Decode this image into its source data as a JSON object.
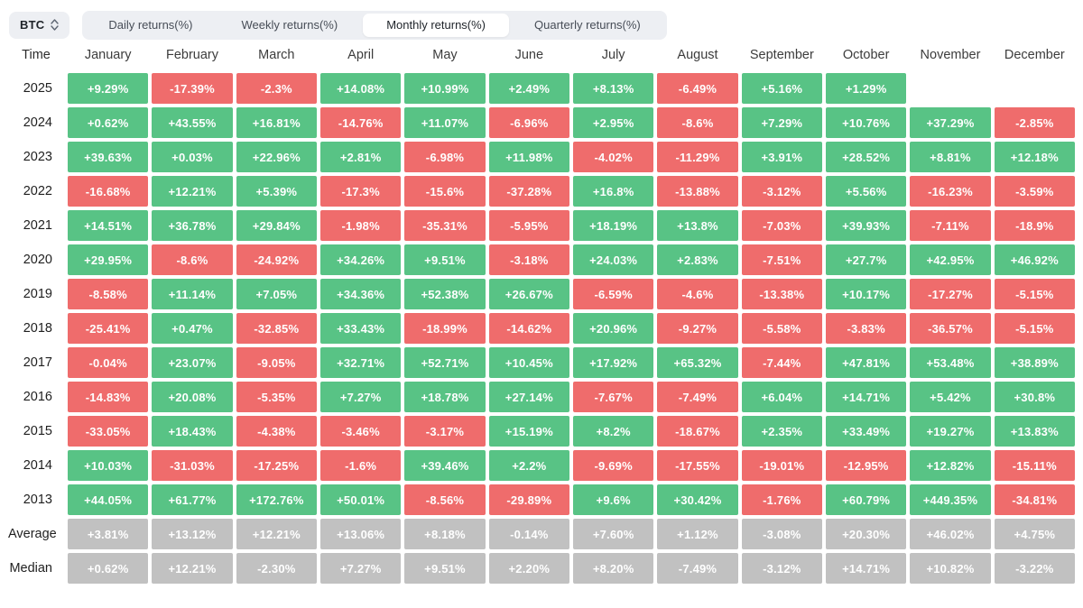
{
  "toolbar": {
    "symbol_selector": {
      "value": "BTC"
    },
    "tabs": [
      {
        "label": "Daily returns(%)",
        "active": false
      },
      {
        "label": "Weekly returns(%)",
        "active": false
      },
      {
        "label": "Monthly returns(%)",
        "active": true
      },
      {
        "label": "Quarterly returns(%)",
        "active": false
      }
    ]
  },
  "colors": {
    "positive": "#58c385",
    "negative": "#ef6c6c",
    "summary": "#c1c1c1",
    "cell_text": "#ffffff"
  },
  "table": {
    "time_header": "Time",
    "month_headers": [
      "January",
      "February",
      "March",
      "April",
      "May",
      "June",
      "July",
      "August",
      "September",
      "October",
      "November",
      "December"
    ],
    "rows": [
      {
        "label": "2025",
        "type": "year",
        "cells": [
          "+9.29%",
          "-17.39%",
          "-2.3%",
          "+14.08%",
          "+10.99%",
          "+2.49%",
          "+8.13%",
          "-6.49%",
          "+5.16%",
          "+1.29%",
          "",
          ""
        ]
      },
      {
        "label": "2024",
        "type": "year",
        "cells": [
          "+0.62%",
          "+43.55%",
          "+16.81%",
          "-14.76%",
          "+11.07%",
          "-6.96%",
          "+2.95%",
          "-8.6%",
          "+7.29%",
          "+10.76%",
          "+37.29%",
          "-2.85%"
        ]
      },
      {
        "label": "2023",
        "type": "year",
        "cells": [
          "+39.63%",
          "+0.03%",
          "+22.96%",
          "+2.81%",
          "-6.98%",
          "+11.98%",
          "-4.02%",
          "-11.29%",
          "+3.91%",
          "+28.52%",
          "+8.81%",
          "+12.18%"
        ]
      },
      {
        "label": "2022",
        "type": "year",
        "cells": [
          "-16.68%",
          "+12.21%",
          "+5.39%",
          "-17.3%",
          "-15.6%",
          "-37.28%",
          "+16.8%",
          "-13.88%",
          "-3.12%",
          "+5.56%",
          "-16.23%",
          "-3.59%"
        ]
      },
      {
        "label": "2021",
        "type": "year",
        "cells": [
          "+14.51%",
          "+36.78%",
          "+29.84%",
          "-1.98%",
          "-35.31%",
          "-5.95%",
          "+18.19%",
          "+13.8%",
          "-7.03%",
          "+39.93%",
          "-7.11%",
          "-18.9%"
        ]
      },
      {
        "label": "2020",
        "type": "year",
        "cells": [
          "+29.95%",
          "-8.6%",
          "-24.92%",
          "+34.26%",
          "+9.51%",
          "-3.18%",
          "+24.03%",
          "+2.83%",
          "-7.51%",
          "+27.7%",
          "+42.95%",
          "+46.92%"
        ]
      },
      {
        "label": "2019",
        "type": "year",
        "cells": [
          "-8.58%",
          "+11.14%",
          "+7.05%",
          "+34.36%",
          "+52.38%",
          "+26.67%",
          "-6.59%",
          "-4.6%",
          "-13.38%",
          "+10.17%",
          "-17.27%",
          "-5.15%"
        ]
      },
      {
        "label": "2018",
        "type": "year",
        "cells": [
          "-25.41%",
          "+0.47%",
          "-32.85%",
          "+33.43%",
          "-18.99%",
          "-14.62%",
          "+20.96%",
          "-9.27%",
          "-5.58%",
          "-3.83%",
          "-36.57%",
          "-5.15%"
        ]
      },
      {
        "label": "2017",
        "type": "year",
        "cells": [
          "-0.04%",
          "+23.07%",
          "-9.05%",
          "+32.71%",
          "+52.71%",
          "+10.45%",
          "+17.92%",
          "+65.32%",
          "-7.44%",
          "+47.81%",
          "+53.48%",
          "+38.89%"
        ]
      },
      {
        "label": "2016",
        "type": "year",
        "cells": [
          "-14.83%",
          "+20.08%",
          "-5.35%",
          "+7.27%",
          "+18.78%",
          "+27.14%",
          "-7.67%",
          "-7.49%",
          "+6.04%",
          "+14.71%",
          "+5.42%",
          "+30.8%"
        ]
      },
      {
        "label": "2015",
        "type": "year",
        "cells": [
          "-33.05%",
          "+18.43%",
          "-4.38%",
          "-3.46%",
          "-3.17%",
          "+15.19%",
          "+8.2%",
          "-18.67%",
          "+2.35%",
          "+33.49%",
          "+19.27%",
          "+13.83%"
        ]
      },
      {
        "label": "2014",
        "type": "year",
        "cells": [
          "+10.03%",
          "-31.03%",
          "-17.25%",
          "-1.6%",
          "+39.46%",
          "+2.2%",
          "-9.69%",
          "-17.55%",
          "-19.01%",
          "-12.95%",
          "+12.82%",
          "-15.11%"
        ]
      },
      {
        "label": "2013",
        "type": "year",
        "cells": [
          "+44.05%",
          "+61.77%",
          "+172.76%",
          "+50.01%",
          "-8.56%",
          "-29.89%",
          "+9.6%",
          "+30.42%",
          "-1.76%",
          "+60.79%",
          "+449.35%",
          "-34.81%"
        ]
      },
      {
        "label": "Average",
        "type": "summary",
        "cells": [
          "+3.81%",
          "+13.12%",
          "+12.21%",
          "+13.06%",
          "+8.18%",
          "-0.14%",
          "+7.60%",
          "+1.12%",
          "-3.08%",
          "+20.30%",
          "+46.02%",
          "+4.75%"
        ]
      },
      {
        "label": "Median",
        "type": "summary",
        "cells": [
          "+0.62%",
          "+12.21%",
          "-2.30%",
          "+7.27%",
          "+9.51%",
          "+2.20%",
          "+8.20%",
          "-7.49%",
          "-3.12%",
          "+14.71%",
          "+10.82%",
          "-3.22%"
        ]
      }
    ]
  },
  "chart_data": {
    "type": "heatmap",
    "title": "BTC Monthly returns(%)",
    "x_categories": [
      "January",
      "February",
      "March",
      "April",
      "May",
      "June",
      "July",
      "August",
      "September",
      "October",
      "November",
      "December"
    ],
    "y_categories": [
      "2025",
      "2024",
      "2023",
      "2022",
      "2021",
      "2020",
      "2019",
      "2018",
      "2017",
      "2016",
      "2015",
      "2014",
      "2013",
      "Average",
      "Median"
    ],
    "values_pct": [
      [
        9.29,
        -17.39,
        -2.3,
        14.08,
        10.99,
        2.49,
        8.13,
        -6.49,
        5.16,
        1.29,
        null,
        null
      ],
      [
        0.62,
        43.55,
        16.81,
        -14.76,
        11.07,
        -6.96,
        2.95,
        -8.6,
        7.29,
        10.76,
        37.29,
        -2.85
      ],
      [
        39.63,
        0.03,
        22.96,
        2.81,
        -6.98,
        11.98,
        -4.02,
        -11.29,
        3.91,
        28.52,
        8.81,
        12.18
      ],
      [
        -16.68,
        12.21,
        5.39,
        -17.3,
        -15.6,
        -37.28,
        16.8,
        -13.88,
        -3.12,
        5.56,
        -16.23,
        -3.59
      ],
      [
        14.51,
        36.78,
        29.84,
        -1.98,
        -35.31,
        -5.95,
        18.19,
        13.8,
        -7.03,
        39.93,
        -7.11,
        -18.9
      ],
      [
        29.95,
        -8.6,
        -24.92,
        34.26,
        9.51,
        -3.18,
        24.03,
        2.83,
        -7.51,
        27.7,
        42.95,
        46.92
      ],
      [
        -8.58,
        11.14,
        7.05,
        34.36,
        52.38,
        26.67,
        -6.59,
        -4.6,
        -13.38,
        10.17,
        -17.27,
        -5.15
      ],
      [
        -25.41,
        0.47,
        -32.85,
        33.43,
        -18.99,
        -14.62,
        20.96,
        -9.27,
        -5.58,
        -3.83,
        -36.57,
        -5.15
      ],
      [
        -0.04,
        23.07,
        -9.05,
        32.71,
        52.71,
        10.45,
        17.92,
        65.32,
        -7.44,
        47.81,
        53.48,
        38.89
      ],
      [
        -14.83,
        20.08,
        -5.35,
        7.27,
        18.78,
        27.14,
        -7.67,
        -7.49,
        6.04,
        14.71,
        5.42,
        30.8
      ],
      [
        -33.05,
        18.43,
        -4.38,
        -3.46,
        -3.17,
        15.19,
        8.2,
        -18.67,
        2.35,
        33.49,
        19.27,
        13.83
      ],
      [
        10.03,
        -31.03,
        -17.25,
        -1.6,
        39.46,
        2.2,
        -9.69,
        -17.55,
        -19.01,
        -12.95,
        12.82,
        -15.11
      ],
      [
        44.05,
        61.77,
        172.76,
        50.01,
        -8.56,
        -29.89,
        9.6,
        30.42,
        -1.76,
        60.79,
        449.35,
        -34.81
      ],
      [
        3.81,
        13.12,
        12.21,
        13.06,
        8.18,
        -0.14,
        7.6,
        1.12,
        -3.08,
        20.3,
        46.02,
        4.75
      ],
      [
        0.62,
        12.21,
        -2.3,
        7.27,
        9.51,
        2.2,
        8.2,
        -7.49,
        -3.12,
        14.71,
        10.82,
        -3.22
      ]
    ],
    "legend": "green = positive return, red = negative return, gray = summary rows",
    "color_positive": "#58c385",
    "color_negative": "#ef6c6c"
  }
}
